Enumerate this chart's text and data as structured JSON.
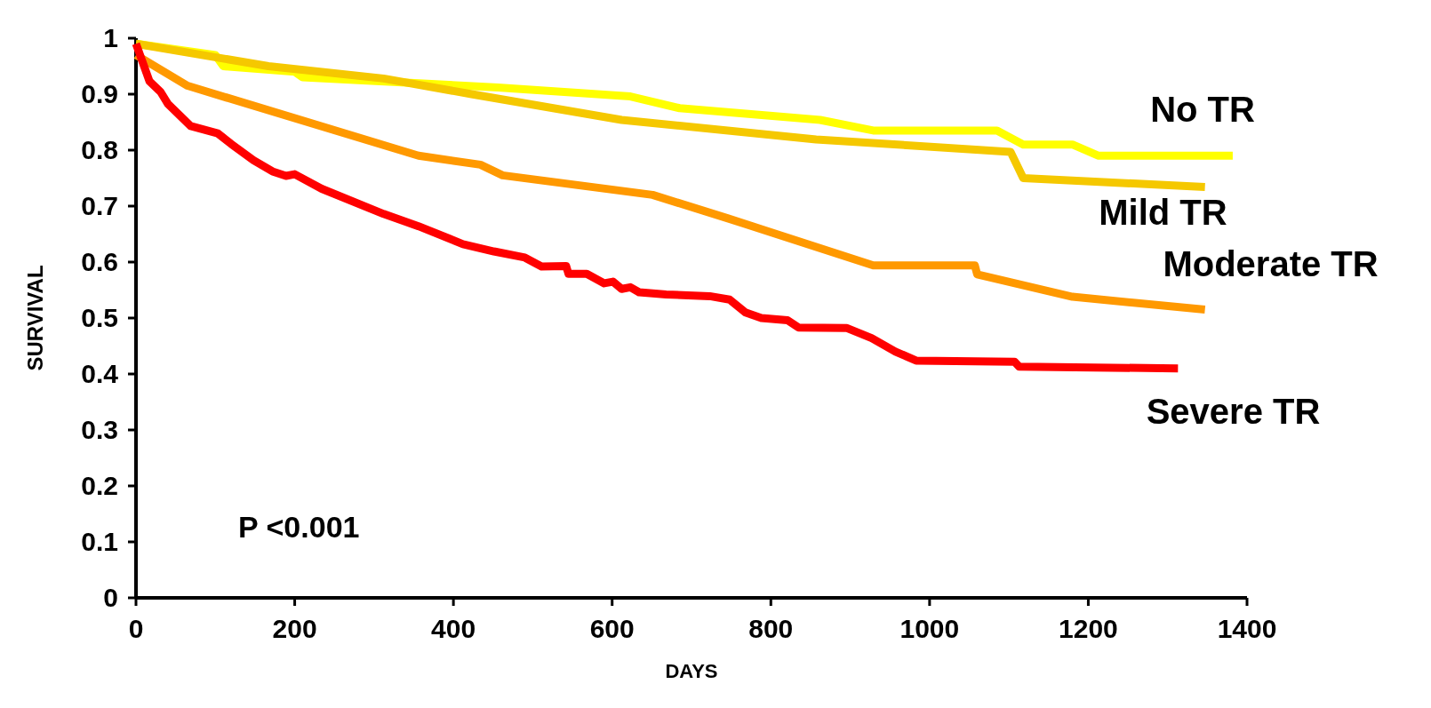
{
  "chart_data": {
    "type": "line",
    "xlabel": "DAYS",
    "ylabel": "SURVIVAL",
    "xlim": [
      0,
      1400
    ],
    "ylim": [
      0,
      1
    ],
    "xticks": [
      0,
      200,
      400,
      600,
      800,
      1000,
      1200,
      1400
    ],
    "yticks": [
      0,
      0.1,
      0.2,
      0.3,
      0.4,
      0.5,
      0.6,
      0.7,
      0.8,
      0.9,
      1
    ],
    "grid": false,
    "marker": "none",
    "line_style": "solid",
    "annotations": [
      "P <0.001"
    ],
    "series": [
      {
        "name": "No TR",
        "color": "#ffff00",
        "x": [
          0,
          100,
          110,
          200,
          210,
          456,
          623,
          685,
          862,
          929,
          1085,
          1118,
          1180,
          1213,
          1382
        ],
        "values": [
          0.99,
          0.97,
          0.95,
          0.94,
          0.93,
          0.912,
          0.896,
          0.875,
          0.854,
          0.835,
          0.835,
          0.81,
          0.81,
          0.79,
          0.79
        ]
      },
      {
        "name": "Mild TR",
        "color": "#f5c800",
        "x": [
          0,
          167,
          312,
          423,
          612,
          857,
          1102,
          1118,
          1347
        ],
        "values": [
          0.99,
          0.95,
          0.928,
          0.9,
          0.854,
          0.819,
          0.797,
          0.75,
          0.734
        ]
      },
      {
        "name": "Moderate TR",
        "color": "#ff9900",
        "x": [
          0,
          65,
          356,
          434,
          462,
          651,
          746,
          929,
          1057,
          1060,
          1180,
          1347
        ],
        "values": [
          0.97,
          0.915,
          0.79,
          0.774,
          0.755,
          0.72,
          0.678,
          0.594,
          0.594,
          0.578,
          0.538,
          0.515
        ]
      },
      {
        "name": "Severe TR",
        "color": "#ff0000",
        "x": [
          0,
          17,
          31,
          40,
          69,
          103,
          120,
          148,
          172,
          189,
          200,
          234,
          312,
          356,
          412,
          451,
          490,
          511,
          542,
          545,
          568,
          590,
          601,
          612,
          623,
          634,
          668,
          723,
          748,
          768,
          788,
          821,
          835,
          896,
          927,
          957,
          983,
          1107,
          1113,
          1313
        ],
        "values": [
          0.99,
          0.923,
          0.904,
          0.883,
          0.843,
          0.83,
          0.811,
          0.782,
          0.762,
          0.754,
          0.757,
          0.731,
          0.686,
          0.664,
          0.632,
          0.619,
          0.608,
          0.592,
          0.593,
          0.579,
          0.579,
          0.562,
          0.565,
          0.552,
          0.555,
          0.546,
          0.542,
          0.539,
          0.533,
          0.51,
          0.5,
          0.496,
          0.483,
          0.482,
          0.464,
          0.44,
          0.424,
          0.422,
          0.413,
          0.41
        ]
      }
    ]
  }
}
